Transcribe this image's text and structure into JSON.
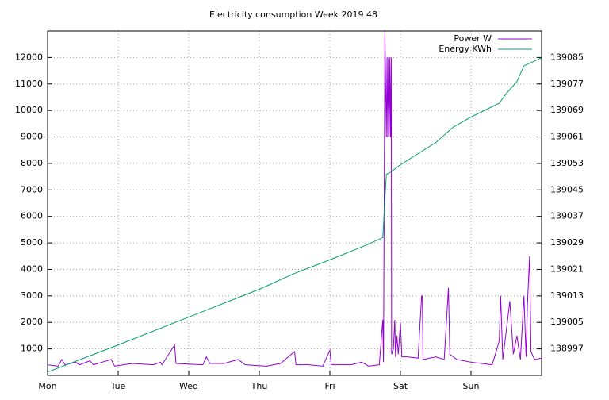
{
  "chart_data": {
    "type": "line",
    "title": "Electricity consumption Week 2019 48",
    "xlim": [
      0,
      7
    ],
    "xticks": [
      {
        "value": 0,
        "label": "Mon"
      },
      {
        "value": 1,
        "label": "Tue"
      },
      {
        "value": 2,
        "label": "Wed"
      },
      {
        "value": 3,
        "label": "Thu"
      },
      {
        "value": 4,
        "label": "Fri"
      },
      {
        "value": 5,
        "label": "Sat"
      },
      {
        "value": 6,
        "label": "Sun"
      }
    ],
    "ylim": [
      0,
      13000
    ],
    "yticks": [
      1000,
      2000,
      3000,
      4000,
      5000,
      6000,
      7000,
      8000,
      9000,
      10000,
      11000,
      12000
    ],
    "y2lim": [
      138989,
      139093
    ],
    "y2ticks": [
      138997,
      139005,
      139013,
      139021,
      139029,
      139037,
      139045,
      139053,
      139061,
      139069,
      139077,
      139085
    ],
    "grid": true,
    "legend": "top-right",
    "series": [
      {
        "name": "Power W",
        "color": "#9400d3",
        "x": [
          0,
          0.15,
          0.2,
          0.25,
          0.4,
          0.45,
          0.6,
          0.65,
          0.9,
          0.95,
          1.2,
          1.5,
          1.6,
          1.62,
          1.8,
          1.82,
          2.2,
          2.25,
          2.3,
          2.5,
          2.7,
          2.8,
          3.1,
          3.3,
          3.5,
          3.52,
          3.7,
          3.9,
          4.0,
          4.02,
          4.3,
          4.45,
          4.55,
          4.7,
          4.75,
          4.76,
          4.78,
          4.8,
          4.81,
          4.82,
          4.83,
          4.84,
          4.85,
          4.86,
          4.87,
          4.875,
          4.9,
          4.92,
          4.93,
          4.95,
          4.97,
          5.0,
          5.02,
          5.1,
          5.25,
          5.3,
          5.31,
          5.32,
          5.5,
          5.62,
          5.68,
          5.7,
          5.8,
          6.0,
          6.15,
          6.3,
          6.4,
          6.42,
          6.45,
          6.55,
          6.6,
          6.65,
          6.7,
          6.75,
          6.78,
          6.8,
          6.83,
          6.85,
          6.9,
          7.0
        ],
        "values": [
          400,
          350,
          600,
          400,
          500,
          400,
          550,
          400,
          600,
          350,
          450,
          400,
          500,
          400,
          1150,
          450,
          400,
          700,
          450,
          450,
          600,
          400,
          350,
          450,
          900,
          400,
          400,
          350,
          950,
          400,
          400,
          500,
          350,
          400,
          2100,
          500,
          13000,
          9000,
          12000,
          9000,
          12000,
          9000,
          12000,
          9000,
          12000,
          800,
          1000,
          2100,
          700,
          1500,
          800,
          2000,
          700,
          700,
          650,
          3000,
          3000,
          600,
          700,
          600,
          3300,
          800,
          600,
          500,
          450,
          400,
          1300,
          3000,
          600,
          2800,
          800,
          1500,
          600,
          3000,
          700,
          2700,
          4500,
          900,
          600,
          650
        ]
      },
      {
        "name": "Energy KWh",
        "color": "#009e73",
        "axis": "y2",
        "x": [
          0,
          1,
          2,
          3,
          3.5,
          4,
          4.5,
          4.75,
          4.8,
          4.85,
          5,
          5.5,
          5.75,
          6,
          6.4,
          6.5,
          6.65,
          6.75,
          7
        ],
        "values": [
          138990,
          138998.2,
          139006.6,
          139015,
          139019.8,
          139023.9,
          139028.2,
          139030.6,
          139049.7,
          139050.2,
          139052.6,
          139059.3,
          139064,
          139067,
          139071.2,
          139074.1,
          139077.7,
          139082.5,
          139084.9
        ]
      }
    ]
  }
}
